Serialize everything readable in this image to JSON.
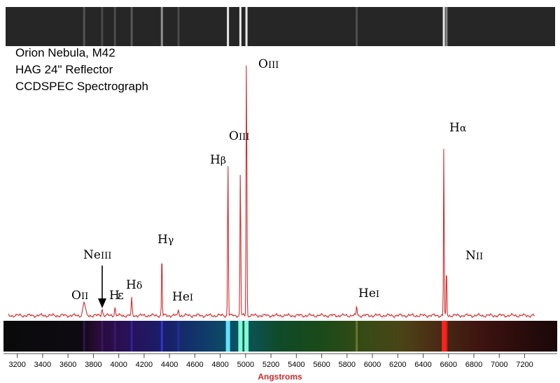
{
  "title_lines": [
    "Orion Nebula, M42",
    "HAG 24\" Reflector",
    "CCDSPEC Spectrograph"
  ],
  "chart_data": {
    "type": "line",
    "xlabel": "Angstroms",
    "ylabel": "",
    "xlim": [
      3130,
      7280
    ],
    "ylim": [
      0,
      100
    ],
    "x_ticks": [
      3200,
      3400,
      3600,
      3800,
      4000,
      4200,
      4400,
      4600,
      4800,
      5000,
      5200,
      5400,
      5600,
      5800,
      6000,
      6200,
      6400,
      6600,
      6800,
      7000,
      7200
    ],
    "baseline": 1.2,
    "lines": [
      {
        "label": "OII",
        "wavelength": 3727,
        "value": 4.9,
        "width": 22
      },
      {
        "label": "NeIII",
        "wavelength": 3869,
        "value": 2.5,
        "width": 12,
        "arrow": true
      },
      {
        "label": "Hε",
        "wavelength": 3970,
        "value": 3.0,
        "width": 10
      },
      {
        "label": "Hδ",
        "wavelength": 4102,
        "value": 6.6,
        "width": 8
      },
      {
        "label": "Hγ",
        "wavelength": 4340,
        "value": 24.1,
        "width": 7
      },
      {
        "label": "HeI",
        "wavelength": 4471,
        "value": 2.5,
        "width": 8
      },
      {
        "label": "Hβ",
        "wavelength": 4861,
        "value": 59.5,
        "width": 7
      },
      {
        "label": "OIII",
        "wavelength": 4959,
        "value": 56.0,
        "width": 7
      },
      {
        "label": "OIII",
        "wavelength": 5007,
        "value": 100,
        "width": 7
      },
      {
        "label": "HeI",
        "wavelength": 5876,
        "value": 3.6,
        "width": 8
      },
      {
        "label": "Hα",
        "wavelength": 6563,
        "value": 67.5,
        "width": 6
      },
      {
        "label": "NII",
        "wavelength": 6584,
        "value": 20.0,
        "width": 6
      }
    ],
    "colors": {
      "trace": "#d42c2c",
      "axis_label": "#cc2a2a",
      "spectrum_bg": "#141414",
      "raw_bg": "#2b2b2b"
    }
  }
}
